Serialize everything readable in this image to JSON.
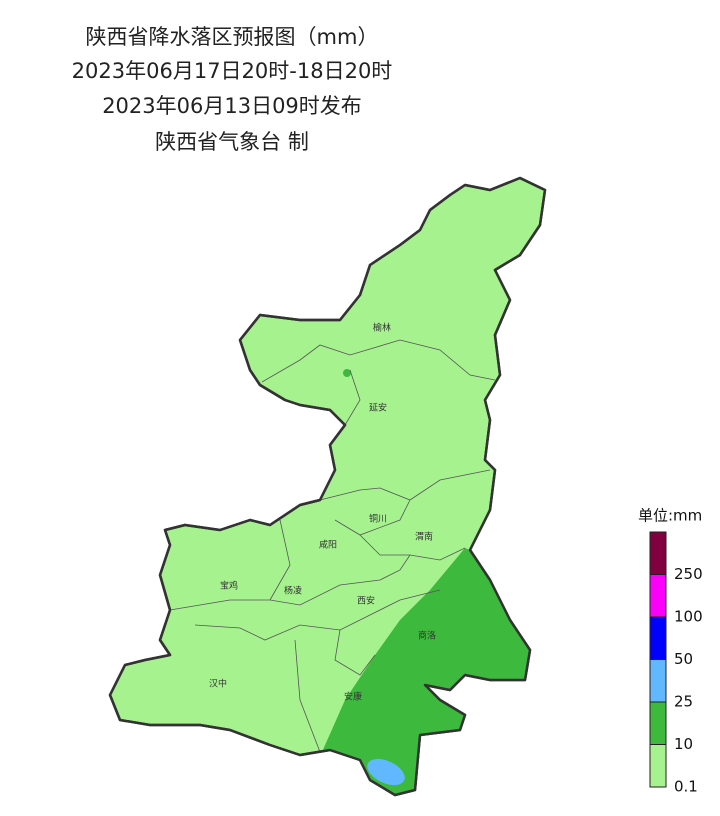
{
  "header": {
    "title": "陕西省降水落区预报图（mm）",
    "period": "2023年06月17日20时-18日20时",
    "issued": "2023年06月13日09时发布",
    "issuer": "陕西省气象台 制"
  },
  "map": {
    "cities": [
      "榆林",
      "延安",
      "铜川",
      "渭南",
      "咸阳",
      "宝鸡",
      "杨凌",
      "西安",
      "商洛",
      "汉中",
      "安康"
    ]
  },
  "legend": {
    "title": "单位:mm",
    "labels": [
      "0.1",
      "10",
      "25",
      "50",
      "100",
      "250"
    ],
    "colors": [
      "#a6f28f",
      "#3dba3d",
      "#61b8ff",
      "#0000fe",
      "#fa00fa",
      "#800040"
    ]
  }
}
